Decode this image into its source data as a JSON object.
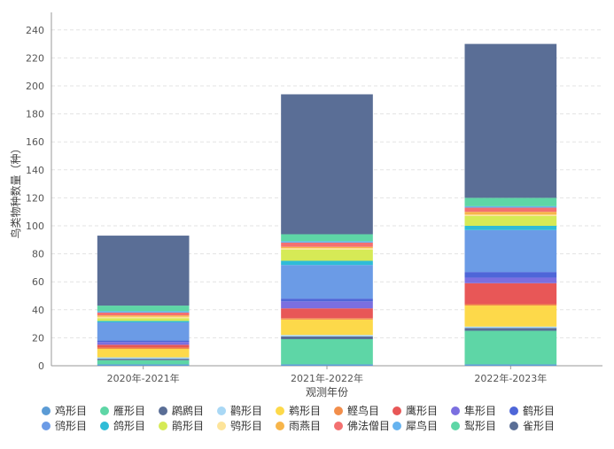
{
  "chart_data": {
    "type": "bar",
    "stacked": true,
    "xlabel": "观测年份",
    "ylabel": "鸟类物种数量（种）",
    "ylim": [
      0,
      250
    ],
    "yticks": [
      0,
      20,
      40,
      60,
      80,
      100,
      120,
      140,
      160,
      180,
      200,
      220,
      240
    ],
    "grid": true,
    "legend_position": "bottom",
    "categories": [
      "2020年-2021年",
      "2021年-2022年",
      "2022年-2023年"
    ],
    "series": [
      {
        "name": "鸡形目",
        "color": "#5b9bd5",
        "values": [
          1,
          1,
          1
        ]
      },
      {
        "name": "雁形目",
        "color": "#5ed6a6",
        "values": [
          3,
          18,
          24
        ]
      },
      {
        "name": "䴙䴘目",
        "color": "#5a6e96",
        "values": [
          1,
          2,
          2
        ]
      },
      {
        "name": "鹳形目",
        "color": "#a9d8f5",
        "values": [
          1,
          1,
          1
        ]
      },
      {
        "name": "鹈形目",
        "color": "#fdd94a",
        "values": [
          6,
          11,
          15
        ]
      },
      {
        "name": "鲣鸟目",
        "color": "#f28e4b",
        "values": [
          1,
          1,
          1
        ]
      },
      {
        "name": "鹰形目",
        "color": "#e85757",
        "values": [
          2,
          7,
          15
        ]
      },
      {
        "name": "隼形目",
        "color": "#7b6fe0",
        "values": [
          2,
          5,
          4
        ]
      },
      {
        "name": "鹤形目",
        "color": "#4e66d8",
        "values": [
          1,
          2,
          4
        ]
      },
      {
        "name": "鸻形目",
        "color": "#6b9be6",
        "values": [
          13,
          24,
          30
        ]
      },
      {
        "name": "鸽形目",
        "color": "#2fbcd7",
        "values": [
          1,
          3,
          3
        ]
      },
      {
        "name": "鹃形目",
        "color": "#d6ea56",
        "values": [
          2,
          8,
          7
        ]
      },
      {
        "name": "鸮形目",
        "color": "#fde49a",
        "values": [
          1,
          1,
          1
        ]
      },
      {
        "name": "雨燕目",
        "color": "#f7b54a",
        "values": [
          1,
          1,
          2
        ]
      },
      {
        "name": "佛法僧目",
        "color": "#f37070",
        "values": [
          2,
          3,
          3
        ]
      },
      {
        "name": "犀鸟目",
        "color": "#66b3ef",
        "values": [
          1,
          1,
          1
        ]
      },
      {
        "name": "䴕形目",
        "color": "#5ed6a6",
        "values": [
          4,
          5,
          6
        ]
      },
      {
        "name": "雀形目",
        "color": "#5a6e96",
        "values": [
          50,
          100,
          110
        ]
      }
    ]
  }
}
